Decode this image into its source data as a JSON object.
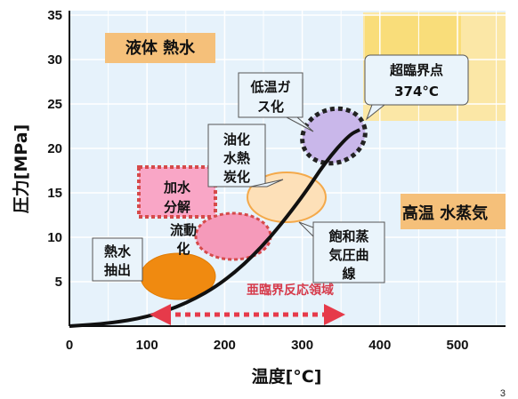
{
  "chart_data": {
    "type": "scatter",
    "x_unit": "°C",
    "y_unit": "MPa",
    "xlabel": "温度[°C]",
    "ylabel": "圧力[MPa]",
    "xlim": [
      0,
      560
    ],
    "ylim": [
      0,
      36
    ],
    "x_ticks": [
      "0",
      "100",
      "200",
      "300",
      "400",
      "500"
    ],
    "y_ticks": [
      "5",
      "10",
      "15",
      "20",
      "25",
      "30",
      "35"
    ],
    "grid": true,
    "saturation_curve": {
      "label_lines": [
        "飽和蒸",
        "気圧曲",
        "線"
      ],
      "points": [
        [
          0,
          0
        ],
        [
          50,
          0.3
        ],
        [
          100,
          1
        ],
        [
          150,
          2.5
        ],
        [
          200,
          5
        ],
        [
          250,
          9
        ],
        [
          300,
          14.5
        ],
        [
          330,
          18.5
        ],
        [
          360,
          21.5
        ],
        [
          374,
          22.1
        ]
      ]
    },
    "critical_point": {
      "label_lines": [
        "超臨界点",
        "374°C"
      ],
      "x": 374,
      "y": 22.1
    },
    "regions": {
      "liquid": "液体 熱水",
      "steam": "高温 水蒸気",
      "subcritical_band": "亜臨界反応領域"
    },
    "processes": [
      {
        "name": "熱水抽出",
        "lines": [
          "熱水",
          "抽出"
        ],
        "center": [
          140,
          5.5
        ],
        "color": "#f28a12"
      },
      {
        "name": "流動化",
        "lines": [
          "流動",
          "化"
        ],
        "center": [
          200,
          10.5
        ],
        "color": "#f9a6c6"
      },
      {
        "name": "加水分解",
        "lines": [
          "加水",
          "分解"
        ],
        "center": [
          160,
          15.5
        ],
        "color": "#f9a6c6"
      },
      {
        "name": "油化水熱炭化",
        "lines": [
          "油化",
          "水熱",
          "炭化"
        ],
        "center": [
          270,
          15.5
        ],
        "color": "#fde0b8"
      },
      {
        "name": "低温ガス化",
        "lines": [
          "低温ガ",
          "ス化"
        ],
        "center": [
          345,
          22
        ],
        "color": "#c9b7ea"
      }
    ]
  },
  "page_number": "3"
}
